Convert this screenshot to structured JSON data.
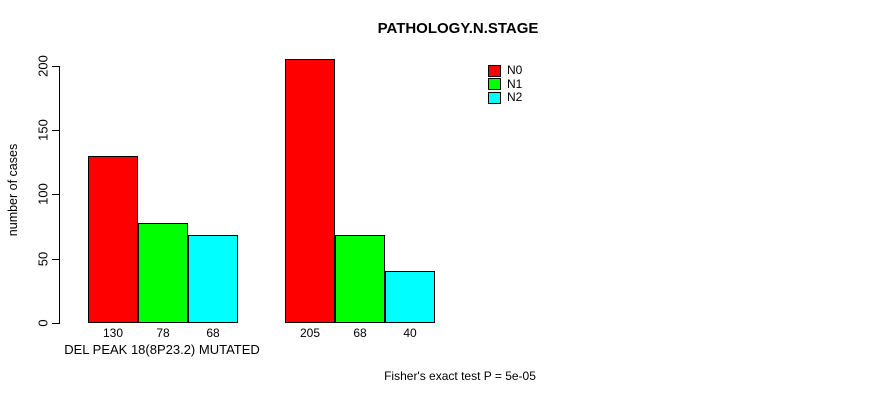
{
  "chart_data": {
    "type": "bar",
    "title": "PATHOLOGY.N.STAGE",
    "ylabel": "number of cases",
    "xlabel": "",
    "categories": [
      "DEL PEAK 18(8P23.2) MUTATED",
      ""
    ],
    "series": [
      {
        "name": "N0",
        "color": "#FF0000",
        "values": [
          130,
          205
        ]
      },
      {
        "name": "N1",
        "color": "#00FF00",
        "values": [
          78,
          68
        ]
      },
      {
        "name": "N2",
        "color": "#00FFFF",
        "values": [
          68,
          40
        ]
      }
    ],
    "bar_value_labels": [
      [
        130,
        78,
        68
      ],
      [
        205,
        68,
        40
      ]
    ],
    "yticks": [
      0,
      50,
      100,
      150,
      200
    ],
    "ylim": [
      0,
      205
    ],
    "grid": false,
    "legend_position": "top-right",
    "annotation": "Fisher's exact test P = 5e-05",
    "axis_color": "#000000",
    "text_color": "#000000",
    "background": "#FFFFFF"
  }
}
